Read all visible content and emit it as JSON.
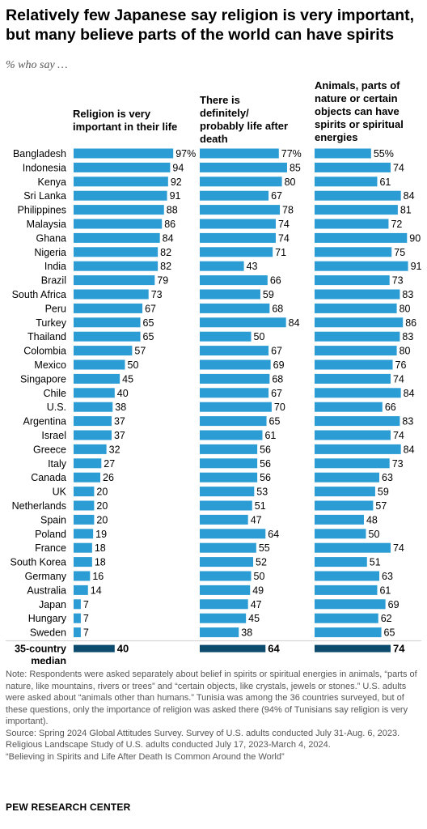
{
  "title": "Relatively few Japanese say religion is very important, but many believe parts of the world can have spirits",
  "subtitle": "% who say …",
  "colors": {
    "bar": "#2b9cd4",
    "median_bar": "#0c4a6e"
  },
  "chart_data": {
    "type": "bar",
    "categories": [
      "Bangladesh",
      "Indonesia",
      "Kenya",
      "Sri Lanka",
      "Philippines",
      "Malaysia",
      "Ghana",
      "Nigeria",
      "India",
      "Brazil",
      "South Africa",
      "Peru",
      "Turkey",
      "Thailand",
      "Colombia",
      "Mexico",
      "Singapore",
      "Chile",
      "U.S.",
      "Argentina",
      "Israel",
      "Greece",
      "Italy",
      "Canada",
      "UK",
      "Netherlands",
      "Spain",
      "Poland",
      "France",
      "South Korea",
      "Germany",
      "Australia",
      "Japan",
      "Hungary",
      "Sweden"
    ],
    "series": [
      {
        "name": "Religion is very important in their life",
        "values": [
          97,
          94,
          92,
          91,
          88,
          86,
          84,
          82,
          82,
          79,
          73,
          67,
          65,
          65,
          57,
          50,
          45,
          40,
          38,
          37,
          37,
          32,
          27,
          26,
          20,
          20,
          20,
          19,
          18,
          18,
          16,
          14,
          7,
          7,
          7
        ],
        "median": 40
      },
      {
        "name": "There is definitely/ probably life after death",
        "values": [
          77,
          85,
          80,
          67,
          78,
          74,
          74,
          71,
          43,
          66,
          59,
          68,
          84,
          50,
          67,
          69,
          68,
          67,
          70,
          65,
          61,
          56,
          56,
          56,
          53,
          51,
          47,
          64,
          55,
          52,
          50,
          49,
          47,
          45,
          38
        ],
        "median": 64
      },
      {
        "name": "Animals, parts of nature or certain objects can have spirits or spiritual energies",
        "values": [
          55,
          74,
          61,
          84,
          81,
          72,
          90,
          75,
          91,
          73,
          83,
          80,
          86,
          83,
          80,
          76,
          74,
          84,
          66,
          83,
          74,
          84,
          73,
          63,
          59,
          57,
          48,
          50,
          74,
          51,
          63,
          61,
          69,
          62,
          65
        ],
        "median": 74
      }
    ],
    "median_label": "35-country median",
    "first_row_suffix": "%",
    "xlim": [
      0,
      100
    ]
  },
  "footer": {
    "note": "Note: Respondents were asked separately about belief in spirits or spiritual energies in animals, “parts of nature, like mountains, rivers or trees” and “certain objects, like crystals, jewels or stones.” U.S. adults were asked about “animals other than humans.” Tunisia was among the 36 countries surveyed, but of these questions, only the importance of religion was asked there (94% of Tunisians say religion is very important).",
    "source": "Source: Spring 2024 Global Attitudes Survey. Survey of U.S. adults conducted July 31-Aug. 6, 2023. Religious Landscape Study of U.S. adults conducted July 17, 2023-March 4, 2024.",
    "report": "“Believing in Spirits and Life After Death Is Common Around the World”",
    "logo": "PEW RESEARCH CENTER"
  }
}
